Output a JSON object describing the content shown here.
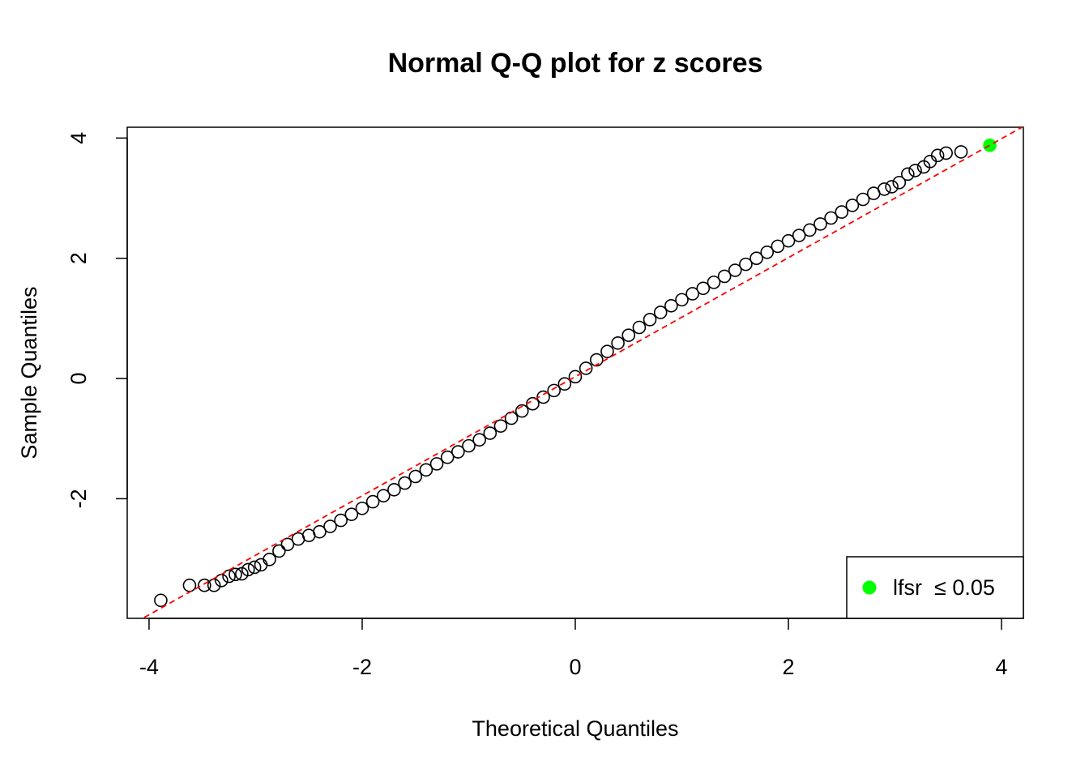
{
  "chart_data": {
    "type": "scatter",
    "title": "Normal Q-Q plot for z scores",
    "xlabel": "Theoretical Quantiles",
    "ylabel": "Sample Quantiles",
    "xlim": [
      -4.205,
      4.205
    ],
    "ylim": [
      -3.99,
      4.18
    ],
    "xticks": [
      -4,
      -2,
      0,
      2,
      4
    ],
    "yticks": [
      -2,
      0,
      2,
      4
    ],
    "grid": false,
    "legend": "bottomright",
    "reference_line": {
      "slope": 0.99,
      "intercept": 0.03,
      "color": "#ff0000"
    },
    "series": [
      {
        "color": "#000000",
        "x": [
          -3.89,
          -3.62,
          -3.48,
          -3.39,
          -3.32,
          -3.25,
          -3.19,
          -3.13,
          -3.07,
          -3.01,
          -2.95,
          -2.87,
          -2.78,
          -2.7,
          -2.6,
          -2.5,
          -2.4,
          -2.3,
          -2.2,
          -2.1,
          -2.0,
          -1.9,
          -1.8,
          -1.7,
          -1.6,
          -1.5,
          -1.4,
          -1.3,
          -1.2,
          -1.1,
          -1.0,
          -0.9,
          -0.8,
          -0.7,
          -0.6,
          -0.5,
          -0.4,
          -0.3,
          -0.2,
          -0.1,
          0.0,
          0.1,
          0.2,
          0.3,
          0.4,
          0.5,
          0.6,
          0.7,
          0.8,
          0.9,
          1.0,
          1.1,
          1.2,
          1.3,
          1.4,
          1.5,
          1.6,
          1.7,
          1.8,
          1.9,
          2.0,
          2.1,
          2.2,
          2.3,
          2.4,
          2.5,
          2.6,
          2.7,
          2.8,
          2.9,
          2.97,
          3.04,
          3.12,
          3.19,
          3.27,
          3.33,
          3.4,
          3.48,
          3.62
        ],
        "values": [
          -3.69,
          -3.44,
          -3.44,
          -3.44,
          -3.36,
          -3.29,
          -3.26,
          -3.25,
          -3.18,
          -3.14,
          -3.1,
          -3.01,
          -2.87,
          -2.76,
          -2.67,
          -2.61,
          -2.55,
          -2.46,
          -2.36,
          -2.26,
          -2.16,
          -2.05,
          -1.95,
          -1.85,
          -1.74,
          -1.63,
          -1.52,
          -1.42,
          -1.31,
          -1.22,
          -1.12,
          -1.02,
          -0.91,
          -0.79,
          -0.66,
          -0.54,
          -0.42,
          -0.31,
          -0.2,
          -0.09,
          0.03,
          0.17,
          0.31,
          0.45,
          0.59,
          0.72,
          0.85,
          0.98,
          1.1,
          1.21,
          1.31,
          1.41,
          1.5,
          1.6,
          1.7,
          1.8,
          1.9,
          2.0,
          2.1,
          2.2,
          2.29,
          2.38,
          2.47,
          2.57,
          2.67,
          2.77,
          2.88,
          2.98,
          3.08,
          3.15,
          3.19,
          3.26,
          3.4,
          3.46,
          3.52,
          3.61,
          3.71,
          3.75,
          3.77
        ]
      },
      {
        "name": "lfsr  ≤ 0.05",
        "color": "#00ff00",
        "x": [
          3.89
        ],
        "values": [
          3.88
        ]
      }
    ]
  }
}
